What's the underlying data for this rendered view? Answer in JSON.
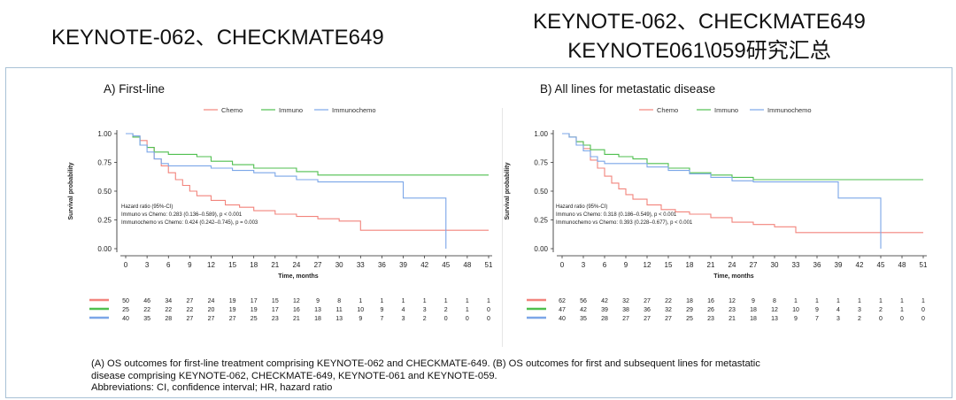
{
  "slide": {
    "title_left": "KEYNOTE-062、CHECKMATE649",
    "title_right_line1": "KEYNOTE-062、CHECKMATE649",
    "title_right_line2": "KEYNOTE061\\059研究汇总"
  },
  "colors": {
    "chemo": "#f2847c",
    "immuno": "#4fbf4f",
    "immunochemo": "#7ba6e8"
  },
  "caption": {
    "line1": "(A) OS outcomes for first-line treatment comprising KEYNOTE-062 and CHECKMATE-649. (B) OS outcomes for first and subsequent lines for metastatic",
    "line2": "disease comprising KEYNOTE-062, CHECKMATE-649, KEYNOTE-061 and KEYNOTE-059.",
    "line3": "Abbreviations: CI, confidence interval; HR, hazard ratio"
  },
  "chart_data": [
    {
      "type": "line",
      "title": "A) First-line",
      "xlabel": "Time, months",
      "ylabel": "Survival probability",
      "x_ticks": [
        0,
        3,
        6,
        9,
        12,
        15,
        18,
        21,
        24,
        27,
        30,
        33,
        36,
        39,
        42,
        45,
        48,
        51
      ],
      "y_ticks": [
        "0.00",
        "0.25",
        "0.50",
        "0.75",
        "1.00"
      ],
      "xlim": [
        0,
        51
      ],
      "ylim": [
        0,
        1
      ],
      "legend": [
        "Chemo",
        "Immuno",
        "Immunochemo"
      ],
      "legend_position": "top-center",
      "annotation": [
        "Hazard ratio (95%-CI)",
        "Immuno vs Chemo: 0.283 (0.136–0.589), p < 0.001",
        "Immunochemo vs Chemo: 0.424 (0.242–0.745), p = 0.003"
      ],
      "series": [
        {
          "name": "Chemo",
          "x": [
            0,
            1,
            2,
            3,
            4,
            5,
            6,
            7,
            8,
            9,
            10,
            12,
            14,
            16,
            18,
            21,
            24,
            27,
            30,
            33,
            51
          ],
          "y": [
            1,
            0.98,
            0.94,
            0.88,
            0.78,
            0.72,
            0.66,
            0.6,
            0.55,
            0.5,
            0.46,
            0.42,
            0.38,
            0.36,
            0.33,
            0.3,
            0.28,
            0.26,
            0.24,
            0.16,
            0.16
          ]
        },
        {
          "name": "Immuno",
          "x": [
            0,
            1,
            2,
            3,
            4,
            6,
            8,
            10,
            12,
            15,
            18,
            21,
            24,
            27,
            51
          ],
          "y": [
            1,
            0.97,
            0.9,
            0.88,
            0.84,
            0.82,
            0.82,
            0.8,
            0.76,
            0.73,
            0.7,
            0.7,
            0.67,
            0.64,
            0.64
          ]
        },
        {
          "name": "Immunochemo",
          "x": [
            0,
            1,
            2,
            3,
            4,
            5,
            6,
            9,
            12,
            15,
            18,
            21,
            24,
            27,
            30,
            33,
            36,
            39,
            42,
            45,
            45
          ],
          "y": [
            1,
            0.98,
            0.9,
            0.84,
            0.78,
            0.74,
            0.72,
            0.72,
            0.7,
            0.68,
            0.66,
            0.63,
            0.6,
            0.58,
            0.58,
            0.58,
            0.58,
            0.44,
            0.44,
            0.44,
            0
          ]
        }
      ],
      "risk_table": [
        [
          50,
          46,
          34,
          27,
          24,
          19,
          17,
          15,
          12,
          9,
          8,
          1,
          1,
          1,
          1,
          1,
          1,
          1
        ],
        [
          25,
          22,
          22,
          22,
          20,
          19,
          19,
          17,
          16,
          13,
          11,
          10,
          9,
          4,
          3,
          2,
          1,
          0
        ],
        [
          40,
          35,
          28,
          27,
          27,
          27,
          25,
          23,
          21,
          18,
          13,
          9,
          7,
          3,
          2,
          0,
          0,
          0
        ]
      ]
    },
    {
      "type": "line",
      "title": "B) All lines for metastatic disease",
      "xlabel": "Time, months",
      "ylabel": "Survival probability",
      "x_ticks": [
        0,
        3,
        6,
        9,
        12,
        15,
        18,
        21,
        24,
        27,
        30,
        33,
        36,
        39,
        42,
        45,
        48,
        51
      ],
      "y_ticks": [
        "0.00",
        "0.25",
        "0.50",
        "0.75",
        "1.00"
      ],
      "xlim": [
        0,
        51
      ],
      "ylim": [
        0,
        1
      ],
      "legend": [
        "Chemo",
        "Immuno",
        "Immunochemo"
      ],
      "legend_position": "top-center",
      "annotation": [
        "Hazard ratio (95%-CI)",
        "Immuno vs Chemo: 0.318 (0.186–0.549), p < 0.001",
        "Immunochemo vs Chemo: 0.393 (0.228–0.677), p < 0.001"
      ],
      "series": [
        {
          "name": "Chemo",
          "x": [
            0,
            1,
            2,
            3,
            4,
            5,
            6,
            7,
            8,
            9,
            10,
            12,
            14,
            16,
            18,
            21,
            24,
            27,
            30,
            33,
            51
          ],
          "y": [
            1,
            0.97,
            0.93,
            0.87,
            0.77,
            0.7,
            0.63,
            0.57,
            0.52,
            0.47,
            0.43,
            0.38,
            0.34,
            0.32,
            0.3,
            0.27,
            0.23,
            0.21,
            0.19,
            0.14,
            0.14
          ]
        },
        {
          "name": "Immuno",
          "x": [
            0,
            1,
            2,
            3,
            4,
            6,
            8,
            10,
            12,
            15,
            18,
            21,
            24,
            27,
            51
          ],
          "y": [
            1,
            0.97,
            0.93,
            0.9,
            0.86,
            0.82,
            0.8,
            0.78,
            0.74,
            0.7,
            0.66,
            0.64,
            0.62,
            0.6,
            0.6
          ]
        },
        {
          "name": "Immunochemo",
          "x": [
            0,
            1,
            2,
            3,
            4,
            5,
            6,
            9,
            12,
            15,
            18,
            21,
            24,
            27,
            30,
            33,
            36,
            39,
            42,
            45,
            45
          ],
          "y": [
            1,
            0.97,
            0.9,
            0.85,
            0.8,
            0.76,
            0.74,
            0.74,
            0.71,
            0.68,
            0.65,
            0.62,
            0.59,
            0.58,
            0.58,
            0.58,
            0.58,
            0.44,
            0.44,
            0.44,
            0
          ]
        }
      ],
      "risk_table": [
        [
          62,
          56,
          42,
          32,
          27,
          22,
          18,
          16,
          12,
          9,
          8,
          1,
          1,
          1,
          1,
          1,
          1,
          1
        ],
        [
          47,
          42,
          39,
          38,
          36,
          32,
          29,
          26,
          23,
          18,
          12,
          10,
          9,
          4,
          3,
          2,
          1,
          0
        ],
        [
          40,
          35,
          28,
          27,
          27,
          27,
          25,
          23,
          21,
          18,
          13,
          9,
          7,
          3,
          2,
          0,
          0,
          0
        ]
      ]
    }
  ]
}
